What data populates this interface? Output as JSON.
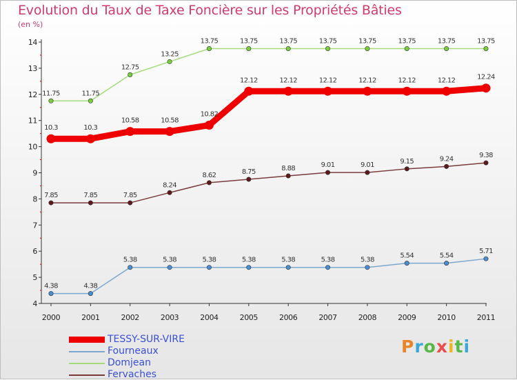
{
  "title": "Evolution du Taux de Taxe Foncière sur les Propriétés Bâties",
  "unit_label": "(en %)",
  "logo": {
    "letters": [
      "P",
      "r",
      "o",
      "x",
      "i",
      "t",
      "i"
    ],
    "colors": [
      "#e8852a",
      "#3aa7d8",
      "#58b847",
      "#e84e4e",
      "#f0b323",
      "#58b847",
      "#3aa7d8"
    ]
  },
  "chart_data": {
    "type": "line",
    "title": "Evolution du Taux de Taxe Foncière sur les Propriétés Bâties",
    "ylabel": "(en %)",
    "xlabel": "",
    "x": [
      "2000",
      "2001",
      "2002",
      "2003",
      "2004",
      "2005",
      "2006",
      "2007",
      "2008",
      "2009",
      "2010",
      "2011"
    ],
    "ylim": [
      4,
      14
    ],
    "yticks": [
      "4",
      "5",
      "6",
      "7",
      "8",
      "9",
      "10",
      "11",
      "12",
      "13",
      "14"
    ],
    "grid": false,
    "legend": "bottom-left",
    "series": [
      {
        "name": "TESSY-SUR-VIRE",
        "color": "#ee0000",
        "highlight": true,
        "values": [
          10.3,
          10.3,
          10.58,
          10.58,
          10.82,
          12.12,
          12.12,
          12.12,
          12.12,
          12.12,
          12.12,
          12.24
        ],
        "labels": [
          "10.3",
          "10.3",
          "10.58",
          "10.58",
          "10.82",
          "12.12",
          "12.12",
          "12.12",
          "12.12",
          "12.12",
          "12.12",
          "12.24"
        ]
      },
      {
        "name": "Fourneaux",
        "color": "#7ba7cf",
        "marker": "#4a8ed0",
        "values": [
          4.38,
          4.38,
          5.38,
          5.38,
          5.38,
          5.38,
          5.38,
          5.38,
          5.38,
          5.54,
          5.54,
          5.71
        ],
        "labels": [
          "4.38",
          "4.38",
          "5.38",
          "5.38",
          "5.38",
          "5.38",
          "5.38",
          "5.38",
          "5.38",
          "5.54",
          "5.54",
          "5.71"
        ]
      },
      {
        "name": "Domjean",
        "color": "#a3db7c",
        "marker": "#79cf3c",
        "values": [
          11.75,
          11.75,
          12.75,
          13.25,
          13.75,
          13.75,
          13.75,
          13.75,
          13.75,
          13.75,
          13.75,
          13.75
        ],
        "labels": [
          "11.75",
          "11.75",
          "12.75",
          "13.25",
          "13.75",
          "13.75",
          "13.75",
          "13.75",
          "13.75",
          "13.75",
          "13.75",
          "13.75"
        ]
      },
      {
        "name": "Fervaches",
        "color": "#7a3a3a",
        "marker": "#5c1a1a",
        "values": [
          7.85,
          7.85,
          7.85,
          8.24,
          8.62,
          8.75,
          8.88,
          9.01,
          9.01,
          9.15,
          9.24,
          9.38
        ],
        "labels": [
          "7.85",
          "7.85",
          "7.85",
          "8.24",
          "8.62",
          "8.75",
          "8.88",
          "9.01",
          "9.01",
          "9.15",
          "9.24",
          "9.38"
        ]
      }
    ]
  }
}
